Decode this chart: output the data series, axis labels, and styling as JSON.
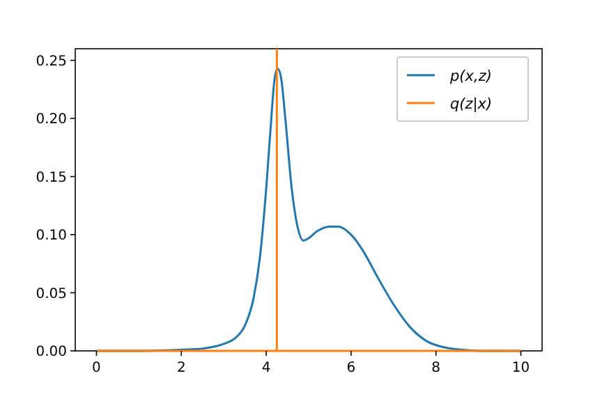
{
  "chart_data": {
    "type": "line",
    "xlim": [
      -0.5,
      10.5
    ],
    "ylim": [
      0,
      0.26
    ],
    "xticks": [
      0,
      2,
      4,
      6,
      8,
      10
    ],
    "yticks": [
      {
        "value": 0,
        "label": "0.00"
      },
      {
        "value": 0.05,
        "label": "0.05"
      },
      {
        "value": 0.1,
        "label": "0.10"
      },
      {
        "value": 0.15,
        "label": "0.15"
      },
      {
        "value": 0.2,
        "label": "0.20"
      },
      {
        "value": 0.25,
        "label": "0.25"
      }
    ],
    "grid": false,
    "legend": "top right",
    "series": [
      {
        "name": "p(x,z)",
        "color": "#1f77b4",
        "x": [
          0,
          1,
          2,
          2.5,
          3,
          3.3,
          3.5,
          3.7,
          3.85,
          4,
          4.1,
          4.2,
          4.27,
          4.35,
          4.45,
          4.6,
          4.75,
          4.87,
          5,
          5.2,
          5.5,
          5.7,
          6,
          6.3,
          6.6,
          7,
          7.4,
          7.8,
          8.2,
          8.6,
          9,
          10
        ],
        "values": [
          0,
          0,
          0.001,
          0.002,
          0.006,
          0.012,
          0.022,
          0.045,
          0.08,
          0.14,
          0.19,
          0.235,
          0.243,
          0.235,
          0.2,
          0.14,
          0.105,
          0.095,
          0.097,
          0.103,
          0.107,
          0.107,
          0.1,
          0.085,
          0.065,
          0.04,
          0.02,
          0.008,
          0.003,
          0.001,
          0,
          0
        ]
      },
      {
        "name": "q(z|x)",
        "color": "#ff7f0e",
        "x": [
          0,
          4.25,
          4.25,
          4.25,
          10
        ],
        "values": [
          0,
          0,
          0.26,
          0,
          0
        ]
      }
    ]
  }
}
